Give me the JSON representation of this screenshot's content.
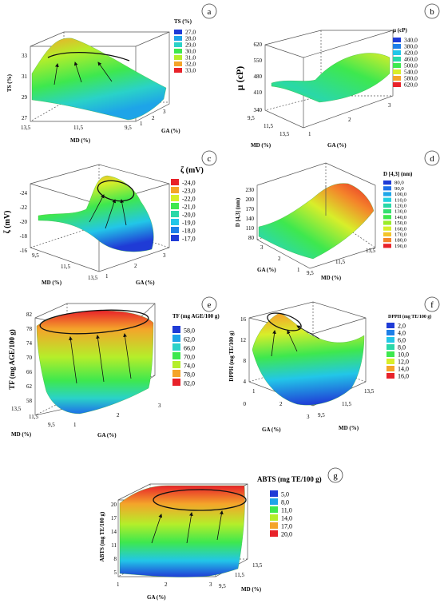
{
  "panels": [
    {
      "letter": "a",
      "legend_title": "TS (%)",
      "legend_values": [
        "27,0",
        "28,0",
        "29,0",
        "30,0",
        "31,0",
        "32,0",
        "33,0"
      ],
      "legend_colors": [
        "#1f3bd6",
        "#1ea4e8",
        "#2ad2c8",
        "#3ee84e",
        "#b5ee2a",
        "#f4a42a",
        "#e8222a"
      ],
      "z_axis_label": "TS (%)",
      "z_ticks": [
        "33",
        "31",
        "29",
        "27"
      ],
      "x_axis_label": "MD (%)",
      "x_ticks": [
        "13,5",
        "11,5",
        "9,5"
      ],
      "y_axis_label": "GA (%)",
      "y_ticks": [
        "1",
        "2",
        "3"
      ]
    },
    {
      "letter": "b",
      "legend_title": "µ (cP)",
      "legend_values": [
        "340,0",
        "380,0",
        "420,0",
        "460,0",
        "500,0",
        "540,0",
        "580,0",
        "620,0"
      ],
      "legend_colors": [
        "#1f3bd6",
        "#1e7fe8",
        "#22c6e8",
        "#2ad8a8",
        "#3ee84e",
        "#d8ee2a",
        "#f4a42a",
        "#e8222a"
      ],
      "z_axis_label": "µ (cP)",
      "z_ticks": [
        "620",
        "550",
        "480",
        "410",
        "340"
      ],
      "x_axis_label": "MD (%)",
      "x_ticks": [
        "9,5",
        "11,5",
        "13,5"
      ],
      "y_axis_label": "GA (%)",
      "y_ticks": [
        "1",
        "2",
        "3"
      ]
    },
    {
      "letter": "c",
      "legend_title": "ζ (mV)",
      "legend_values": [
        "-24,0",
        "-23,0",
        "-22,0",
        "-21,0",
        "-20,0",
        "-19,0",
        "-18,0",
        "-17,0"
      ],
      "legend_colors": [
        "#e8222a",
        "#f4a42a",
        "#d8ee2a",
        "#3ee84e",
        "#2ad8a8",
        "#22c6e8",
        "#1e7fe8",
        "#1f3bd6"
      ],
      "z_axis_label": "ζ (mV)",
      "z_ticks": [
        "-24",
        "-22",
        "-20",
        "-18",
        "-16"
      ],
      "x_axis_label": "MD (%)",
      "x_ticks": [
        "9,5",
        "11,5",
        "13,5"
      ],
      "y_axis_label": "GA (%)",
      "y_ticks": [
        "1",
        "2",
        "3"
      ]
    },
    {
      "letter": "d",
      "legend_title": "D [4,3] (nm)",
      "legend_values": [
        "80,0",
        "90,0",
        "100,0",
        "110,0",
        "120,0",
        "130,0",
        "140,0",
        "150,0",
        "160,0",
        "170,0",
        "180,0",
        "190,0"
      ],
      "legend_colors": [
        "#1f3bd6",
        "#1e6fe8",
        "#1fa6e8",
        "#22d0e0",
        "#2ad8a8",
        "#33e070",
        "#3ee84e",
        "#9aec2a",
        "#d8ee2a",
        "#f4c42a",
        "#f4842a",
        "#e8222a"
      ],
      "z_axis_label": "D [4,3] (nm)",
      "z_ticks": [
        "230",
        "200",
        "170",
        "140",
        "110",
        "80"
      ],
      "x_axis_label": "MD (%)",
      "x_ticks": [
        "9,5",
        "11,5",
        "13,5"
      ],
      "y_axis_label": "GA (%)",
      "y_ticks": [
        "3",
        "2",
        "1"
      ]
    },
    {
      "letter": "e",
      "legend_title": "TF (mg AGE/100 g)",
      "legend_values": [
        "58,0",
        "62,0",
        "66,0",
        "70,0",
        "74,0",
        "78,0",
        "82,0"
      ],
      "legend_colors": [
        "#1f3bd6",
        "#1ea4e8",
        "#2ad2c8",
        "#3ee84e",
        "#b5ee2a",
        "#f4a42a",
        "#e8222a"
      ],
      "z_axis_label": "TF (mg AGE/100 g)",
      "z_ticks": [
        "82",
        "78",
        "74",
        "70",
        "66",
        "62",
        "58"
      ],
      "x_axis_label": "MD (%)",
      "x_ticks": [
        "13,5",
        "11,5",
        "9,5"
      ],
      "y_axis_label": "GA (%)",
      "y_ticks": [
        "1",
        "2",
        "3"
      ]
    },
    {
      "letter": "f",
      "legend_title": "DPPH (mg TE/100 g)",
      "legend_values": [
        "2,0",
        "4,0",
        "6,0",
        "8,0",
        "10,0",
        "12,0",
        "14,0",
        "16,0"
      ],
      "legend_colors": [
        "#1f3bd6",
        "#1e7fe8",
        "#22c6e8",
        "#2ad8a8",
        "#3ee84e",
        "#d8ee2a",
        "#f4a42a",
        "#e8222a"
      ],
      "z_axis_label": "DPPH (mg TE/100 g)",
      "z_ticks": [
        "16",
        "12",
        "8",
        "4",
        "0"
      ],
      "x_axis_label": "MD (%)",
      "x_ticks": [
        "9,5",
        "11,5",
        "13,5"
      ],
      "y_axis_label": "GA (%)",
      "y_ticks": [
        "1",
        "2",
        "3"
      ]
    },
    {
      "letter": "g",
      "legend_title": "ABTS (mg TE/100 g)",
      "legend_values": [
        "5,0",
        "8,0",
        "11,0",
        "14,0",
        "17,0",
        "20,0"
      ],
      "legend_colors": [
        "#1f3bd6",
        "#1ea4e8",
        "#3ee84e",
        "#b5ee2a",
        "#f4a42a",
        "#e8222a"
      ],
      "z_axis_label": "ABTS (mg TE/100 g)",
      "z_ticks": [
        "20",
        "17",
        "14",
        "11",
        "8",
        "5"
      ],
      "x_axis_label": "GA (%)",
      "x_ticks": [
        "1",
        "2",
        "3"
      ],
      "y_axis_label": "MD (%)",
      "y_ticks": [
        "9,5",
        "11,5",
        "13,5"
      ]
    }
  ],
  "chart_data": [
    {
      "type": "surface",
      "panel": "a",
      "xlabel": "MD (%)",
      "ylabel": "GA (%)",
      "zlabel": "TS (%)",
      "zlim": [
        27,
        33
      ],
      "z_corners": {
        "MD9.5_GA1": 27.4,
        "MD13.5_GA1": 29.8,
        "MD9.5_GA3": 30.2,
        "MD13.5_GA3": 33.0
      }
    },
    {
      "type": "surface",
      "panel": "b",
      "xlabel": "MD (%)",
      "ylabel": "GA (%)",
      "zlabel": "µ (cP)",
      "zlim": [
        340,
        620
      ],
      "z_corners": {
        "MD9.5_GA1": 420,
        "MD13.5_GA1": 430,
        "MD9.5_GA3": 520,
        "MD13.5_GA3": 560
      }
    },
    {
      "type": "surface",
      "panel": "c",
      "xlabel": "MD (%)",
      "ylabel": "GA (%)",
      "zlabel": "ζ (mV)",
      "zlim": [
        -16,
        -24
      ],
      "z_corners": {
        "MD9.5_GA1": -21,
        "MD13.5_GA1": -17,
        "MD9.5_GA3": -21,
        "MD13.5_GA3": -24
      }
    },
    {
      "type": "surface",
      "panel": "d",
      "xlabel": "MD (%)",
      "ylabel": "GA (%)",
      "zlabel": "D [4,3] (nm)",
      "zlim": [
        80,
        230
      ],
      "z_corners": {
        "MD9.5_GA1": 95,
        "MD13.5_GA1": 120,
        "MD9.5_GA3": 140,
        "MD13.5_GA3": 190
      }
    },
    {
      "type": "surface",
      "panel": "e",
      "xlabel": "MD (%)",
      "ylabel": "GA (%)",
      "zlabel": "TF (mg AGE/100 g)",
      "zlim": [
        58,
        82
      ],
      "z_corners": {
        "MD9.5_GA1": 66,
        "MD13.5_GA1": 80,
        "MD9.5_GA3": 58,
        "MD13.5_GA3": 72
      }
    },
    {
      "type": "surface",
      "panel": "f",
      "xlabel": "MD (%)",
      "ylabel": "GA (%)",
      "zlabel": "DPPH (mg TE/100 g)",
      "zlim": [
        0,
        16
      ],
      "z_corners": {
        "MD9.5_GA1": 10,
        "MD13.5_GA1": 10,
        "MD9.5_GA3": 12,
        "MD13.5_GA3": 16
      }
    },
    {
      "type": "surface",
      "panel": "g",
      "xlabel": "GA (%)",
      "ylabel": "MD (%)",
      "zlabel": "ABTS (mg TE/100 g)",
      "zlim": [
        5,
        20
      ],
      "z_corners": {
        "GA1_MD9.5": 8,
        "GA1_MD13.5": 11,
        "GA3_MD9.5": 6,
        "GA3_MD13.5": 20
      }
    }
  ]
}
